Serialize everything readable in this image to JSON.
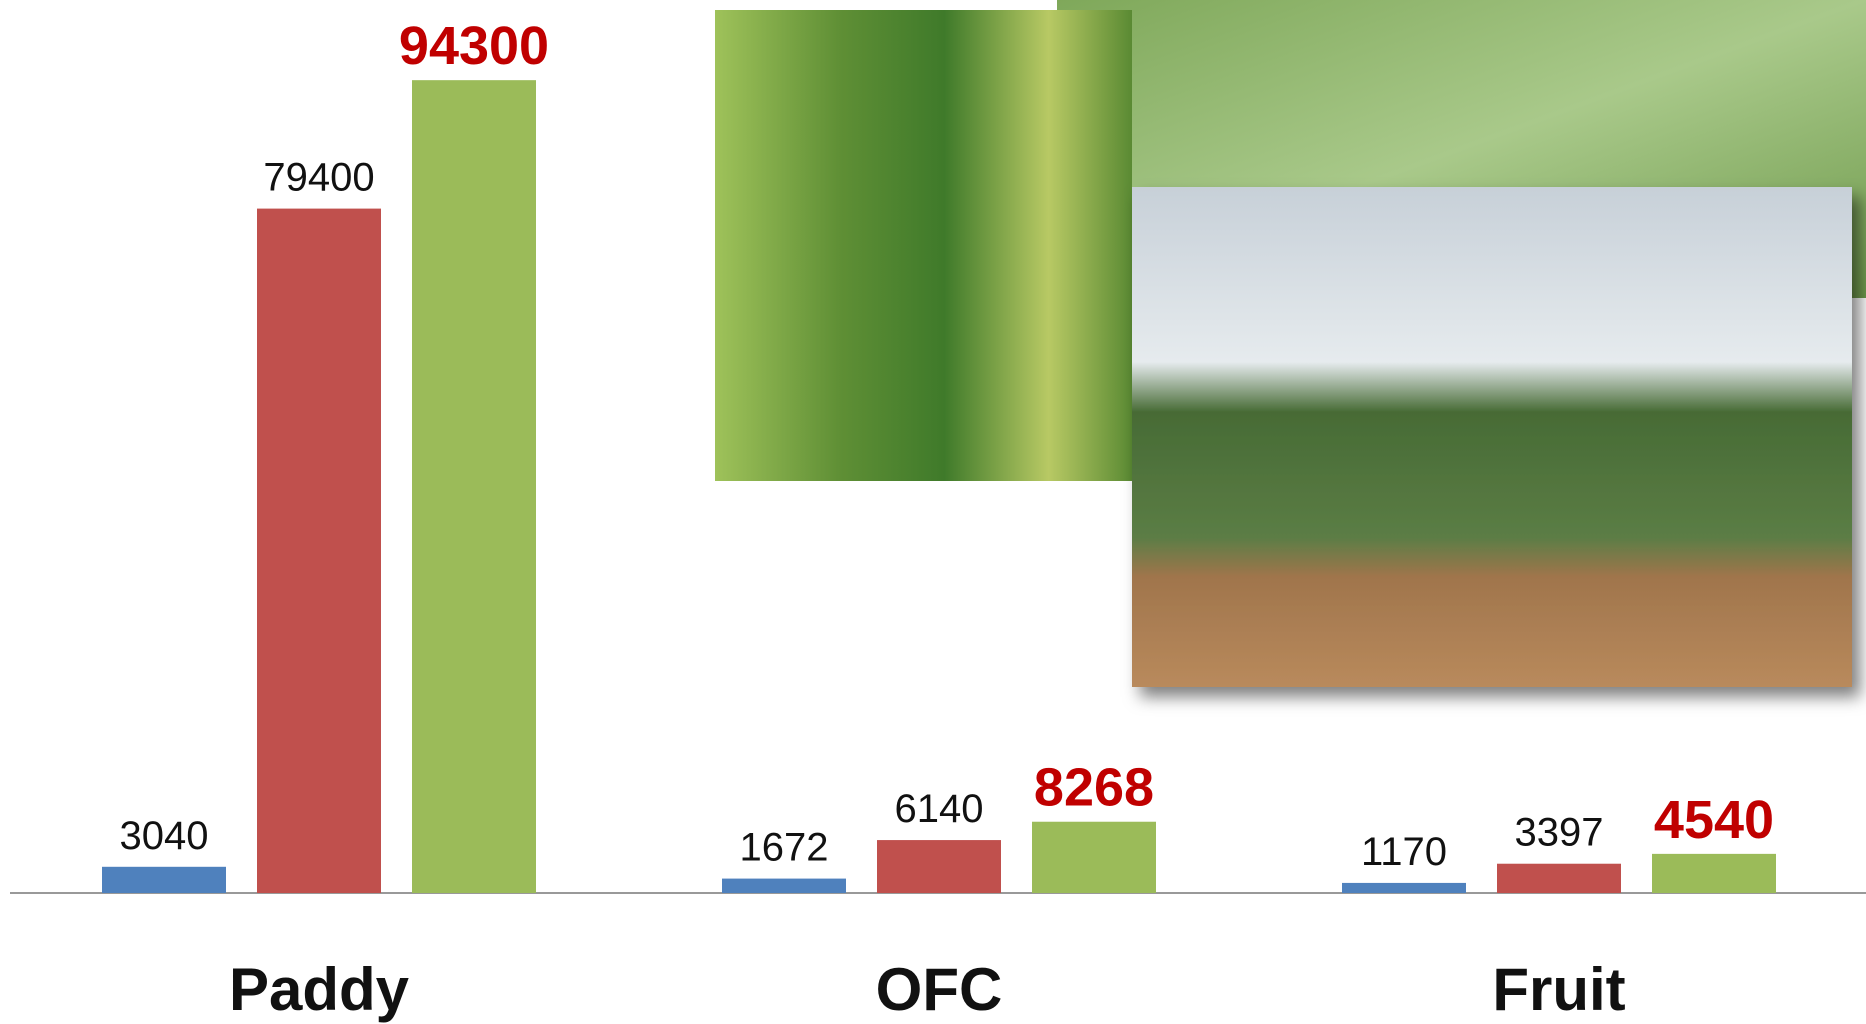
{
  "chart_data": {
    "type": "bar",
    "categories": [
      "Paddy",
      "OFC",
      "Fruit"
    ],
    "series": [
      {
        "color": "#4f81bd",
        "values": [
          3040,
          1672,
          1170
        ]
      },
      {
        "color": "#c0504d",
        "values": [
          79400,
          6140,
          3397
        ]
      },
      {
        "color": "#9bbb59",
        "values": [
          94300,
          8268,
          4540
        ]
      }
    ],
    "ylim": [
      0,
      103600
    ]
  }
}
